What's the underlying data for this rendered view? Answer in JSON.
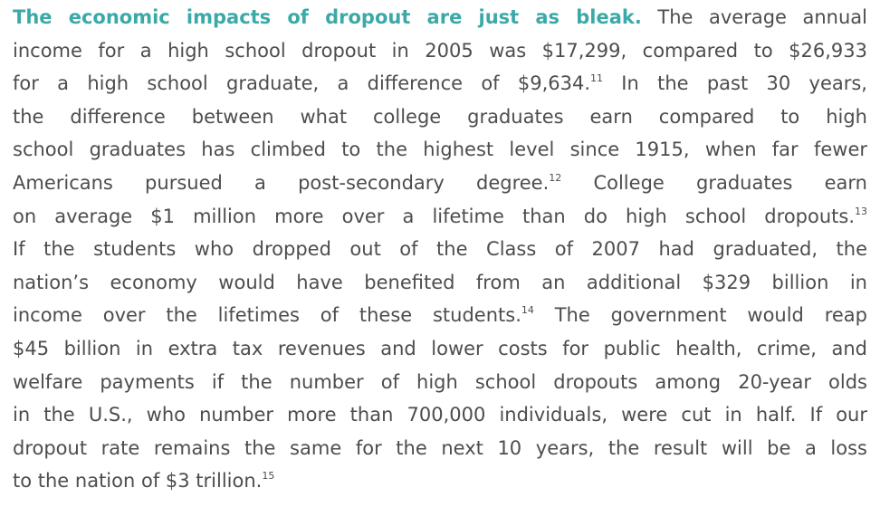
{
  "paragraph": {
    "lines": [
      [
        {
          "lead": "The economic impacts of dropout are just as bleak."
        },
        {
          "text": " The average annual"
        }
      ],
      [
        {
          "text": "income for a high school dropout in 2005 was $17,299, compared to $26,933"
        }
      ],
      [
        {
          "text": "for a high school graduate, a difference of $9,634."
        },
        {
          "sup": "11"
        },
        {
          "text": " In the past 30 years,"
        }
      ],
      [
        {
          "text": "the difference between what college graduates earn compared to high"
        }
      ],
      [
        {
          "text": "school graduates has climbed to the highest level since 1915, when far fewer"
        }
      ],
      [
        {
          "text": "Americans pursued a post-secondary degree."
        },
        {
          "sup": "12"
        },
        {
          "text": "  College graduates earn"
        }
      ],
      [
        {
          "text": "on average $1 million more over a lifetime than do high school dropouts."
        },
        {
          "sup": "13"
        }
      ],
      [
        {
          "text": "If the students who dropped out of the Class of 2007 had graduated, the"
        }
      ],
      [
        {
          "text": "nation’s economy would have benefited from an additional $329 billion in"
        }
      ],
      [
        {
          "text": "income over the lifetimes of these students."
        },
        {
          "sup": "14"
        },
        {
          "text": " The government would reap"
        }
      ],
      [
        {
          "text": "$45 billion in extra tax revenues and lower costs for public health, crime, and"
        }
      ],
      [
        {
          "text": "welfare payments if the number of high school dropouts among 20-year olds"
        }
      ],
      [
        {
          "text": "in the U.S., who number more than 700,000 individuals, were cut in half.  If our"
        }
      ],
      [
        {
          "text": "dropout rate remains the same for the next 10 years, the result will be a loss"
        }
      ],
      [
        {
          "text": "to the nation of $3 trillion."
        },
        {
          "sup": "15"
        }
      ]
    ]
  }
}
